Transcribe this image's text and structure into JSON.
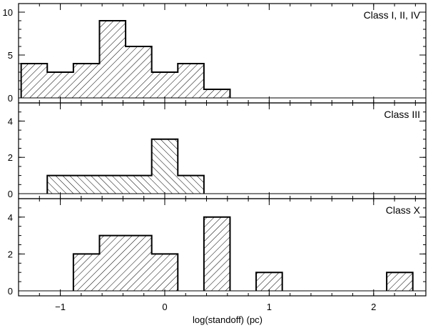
{
  "chart_data": {
    "type": "bar",
    "xlabel": "log(standoff)  (pc)",
    "xlim": [
      -1.4,
      2.5
    ],
    "xticks": [
      -1,
      0,
      1,
      2
    ],
    "bin_width": 0.25,
    "panels": [
      {
        "label": "Class I, II, IV",
        "ylim": [
          0,
          11
        ],
        "yticks": [
          0,
          5,
          10
        ],
        "hatch": "back",
        "bins": [
          {
            "x0": -1.375,
            "x1": -1.125,
            "count": 4
          },
          {
            "x0": -1.125,
            "x1": -0.875,
            "count": 3
          },
          {
            "x0": -0.875,
            "x1": -0.625,
            "count": 4
          },
          {
            "x0": -0.625,
            "x1": -0.375,
            "count": 9
          },
          {
            "x0": -0.375,
            "x1": -0.125,
            "count": 6
          },
          {
            "x0": -0.125,
            "x1": 0.125,
            "count": 3
          },
          {
            "x0": 0.125,
            "x1": 0.375,
            "count": 4
          },
          {
            "x0": 0.375,
            "x1": 0.625,
            "count": 1
          }
        ]
      },
      {
        "label": "Class III",
        "ylim": [
          0,
          5
        ],
        "yticks": [
          0,
          2,
          4
        ],
        "hatch": "forward",
        "bins": [
          {
            "x0": -1.125,
            "x1": -0.125,
            "count": 1
          },
          {
            "x0": -0.125,
            "x1": 0.125,
            "count": 3
          },
          {
            "x0": 0.125,
            "x1": 0.375,
            "count": 1
          }
        ]
      },
      {
        "label": "Class X",
        "ylim": [
          0,
          5
        ],
        "yticks": [
          0,
          2,
          4
        ],
        "hatch": "back",
        "bins": [
          {
            "x0": -0.875,
            "x1": -0.625,
            "count": 2
          },
          {
            "x0": -0.625,
            "x1": -0.125,
            "count": 3
          },
          {
            "x0": -0.125,
            "x1": 0.125,
            "count": 2
          },
          {
            "x0": 0.375,
            "x1": 0.625,
            "count": 4
          },
          {
            "x0": 0.875,
            "x1": 1.125,
            "count": 1
          },
          {
            "x0": 2.125,
            "x1": 2.375,
            "count": 1
          }
        ]
      }
    ]
  }
}
